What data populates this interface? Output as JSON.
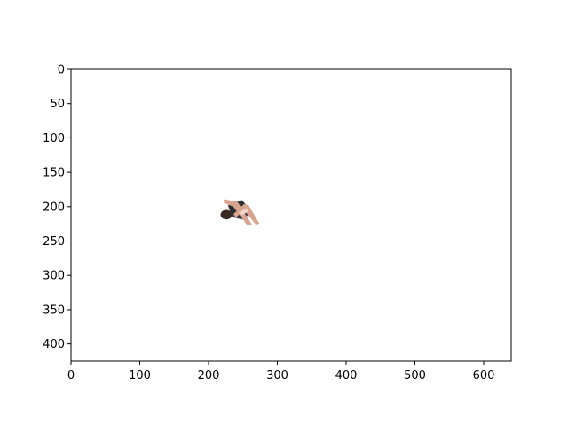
{
  "chart_data": {
    "type": "image",
    "title": "",
    "xlabel": "",
    "ylabel": "",
    "xlim": [
      0,
      640
    ],
    "ylim": [
      425,
      0
    ],
    "y_inverted": true,
    "x_ticks": [
      0,
      100,
      200,
      300,
      400,
      500,
      600
    ],
    "y_ticks": [
      0,
      50,
      100,
      150,
      200,
      250,
      300,
      350,
      400
    ],
    "grid": false,
    "legend": "none",
    "image_content": {
      "description_name": "figure-cutout",
      "x_range": [
        215,
        275
      ],
      "y_range": [
        185,
        228
      ],
      "colors": {
        "hair": "#3a2a22",
        "skin": "#d7a48f",
        "clothing": "#2e2e33",
        "highlight": "#f0d6ca"
      }
    },
    "colors": {
      "axis": "#000000",
      "background": "#ffffff"
    }
  }
}
